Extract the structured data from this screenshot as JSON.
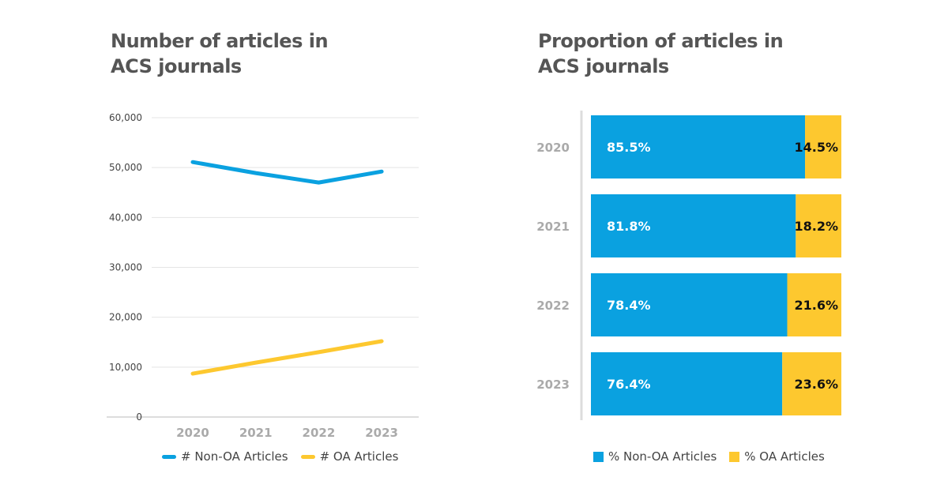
{
  "chart_data": [
    {
      "type": "line",
      "title": "Number of articles in ACS journals",
      "title_lines": [
        "Number of articles in",
        "ACS journals"
      ],
      "categories": [
        "2020",
        "2021",
        "2022",
        "2023"
      ],
      "ylim": [
        0,
        60000
      ],
      "yticks": [
        0,
        10000,
        20000,
        30000,
        40000,
        50000,
        60000
      ],
      "ytick_labels": [
        "0",
        "10,000",
        "20,000",
        "30,000",
        "40,000",
        "50,000",
        "60,000"
      ],
      "grid": true,
      "legend": "bottom",
      "series": [
        {
          "name": "# Non-OA Articles",
          "color": "#0aa1e0",
          "values": [
            51100,
            48900,
            47000,
            49200
          ]
        },
        {
          "name": "# OA Articles",
          "color": "#fdc82f",
          "values": [
            8700,
            10900,
            13000,
            15200
          ]
        }
      ]
    },
    {
      "type": "bar",
      "orientation": "horizontal",
      "stacked": true,
      "title": "Proportion of articles in ACS journals",
      "title_lines": [
        "Proportion of articles in",
        "ACS journals"
      ],
      "categories": [
        "2020",
        "2021",
        "2022",
        "2023"
      ],
      "xlim": [
        0,
        100
      ],
      "legend": "bottom",
      "series": [
        {
          "name": "% Non-OA Articles",
          "color": "#0aa1e0",
          "values": [
            85.5,
            81.8,
            78.4,
            76.4
          ],
          "labels": [
            "85.5%",
            "81.8%",
            "78.4%",
            "76.4%"
          ]
        },
        {
          "name": "% OA Articles",
          "color": "#fdc82f",
          "values": [
            14.5,
            18.2,
            21.6,
            23.6
          ],
          "labels": [
            "14.5%",
            "18.2%",
            "21.6%",
            "23.6%"
          ]
        }
      ]
    }
  ]
}
